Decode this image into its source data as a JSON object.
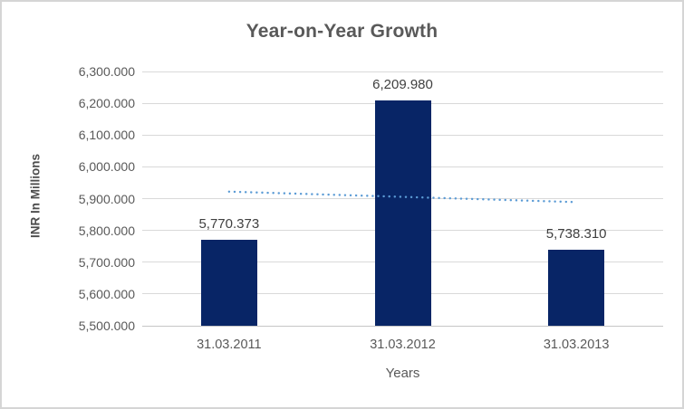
{
  "chart": {
    "title": "Year-on-Year Growth",
    "y_axis_title": "INR In Millions",
    "x_axis_title": "Years",
    "colors": {
      "bar_fill": "#082566",
      "trendline": "#5b9bd5",
      "title_text": "#595959",
      "tick_text": "#595959",
      "data_label_text": "#404040",
      "gridline": "#d9d9d9",
      "frame_border": "#d5d5d5"
    }
  },
  "chart_data": {
    "type": "bar",
    "title": "Year-on-Year Growth",
    "xlabel": "Years",
    "ylabel": "INR In Millions",
    "categories": [
      "31.03.2011",
      "31.03.2012",
      "31.03.2013"
    ],
    "values": [
      5770.373,
      6209.98,
      5738.31
    ],
    "data_labels": [
      "5,770.373",
      "6,209.980",
      "5,738.310"
    ],
    "ylim": [
      5500,
      6300
    ],
    "ytick_step": 100,
    "ytick_labels": [
      "6,300.000",
      "6,200.000",
      "6,100.000",
      "6,000.000",
      "5,900.000",
      "5,800.000",
      "5,700.000",
      "5,600.000",
      "5,500.000"
    ],
    "ytick_values": [
      6300,
      6200,
      6100,
      6000,
      5900,
      5800,
      5700,
      5600,
      5500
    ],
    "grid": true,
    "legend": "none",
    "trendline": {
      "style": "dotted",
      "start_value": 5922,
      "end_value": 5889
    }
  }
}
